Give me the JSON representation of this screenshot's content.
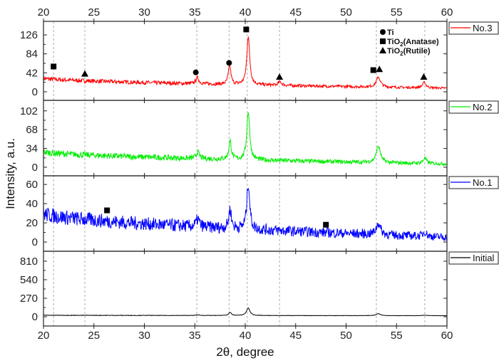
{
  "chart_data": {
    "type": "line",
    "title": "",
    "xlabel": "2θ, degree",
    "ylabel": "Intensity, a.u.",
    "xlim": [
      20,
      60
    ],
    "xticks": [
      20,
      25,
      30,
      35,
      40,
      45,
      50,
      55,
      60
    ],
    "reference_lines": [
      21.0,
      24.1,
      35.2,
      38.4,
      40.2,
      43.4,
      53.0,
      57.8
    ],
    "marker_legend": [
      {
        "symbol": "circle",
        "label": "Ti"
      },
      {
        "symbol": "square",
        "label": "TiO2(Anatase)"
      },
      {
        "symbol": "triangle",
        "label": "TiO2(Rutile)"
      }
    ],
    "panels": [
      {
        "name": "No.3",
        "color": "#ff0000",
        "ylim": [
          -19,
          156
        ],
        "yticks": [
          0,
          42,
          84,
          126
        ],
        "baseline": [
          30,
          8
        ],
        "noise": 5,
        "peaks": [
          [
            35.25,
            14,
            0.18
          ],
          [
            38.45,
            42,
            0.15
          ],
          [
            40.3,
            108,
            0.17
          ],
          [
            43.45,
            8,
            0.2
          ],
          [
            53.2,
            22,
            0.25
          ],
          [
            57.75,
            12,
            0.2
          ]
        ],
        "markers": [
          {
            "symbol": "square",
            "x": 21.0,
            "y": 56
          },
          {
            "symbol": "triangle",
            "x": 24.1,
            "y": 40
          },
          {
            "symbol": "circle",
            "x": 35.1,
            "y": 43
          },
          {
            "symbol": "circle",
            "x": 38.4,
            "y": 64
          },
          {
            "symbol": "square",
            "x": 40.1,
            "y": 138
          },
          {
            "symbol": "triangle",
            "x": 43.4,
            "y": 33
          },
          {
            "symbol": "square",
            "x": 52.7,
            "y": 48
          },
          {
            "symbol": "triangle",
            "x": 53.3,
            "y": 50
          },
          {
            "symbol": "triangle",
            "x": 57.7,
            "y": 33
          }
        ]
      },
      {
        "name": "No.2",
        "color": "#00ee00",
        "ylim": [
          -15.5,
          121
        ],
        "yticks": [
          0,
          34,
          68,
          102
        ],
        "baseline": [
          28,
          6
        ],
        "noise": 6,
        "peaks": [
          [
            35.3,
            12,
            0.18
          ],
          [
            38.5,
            33,
            0.15
          ],
          [
            40.3,
            88,
            0.17
          ],
          [
            53.2,
            30,
            0.25
          ],
          [
            57.8,
            10,
            0.2
          ]
        ],
        "markers": []
      },
      {
        "name": "No.1",
        "color": "#0000ff",
        "ylim": [
          -9.6,
          69
        ],
        "yticks": [
          0,
          20,
          40,
          60
        ],
        "baseline": [
          30,
          5
        ],
        "noise": 8,
        "peaks": [
          [
            35.3,
            8,
            0.18
          ],
          [
            38.5,
            20,
            0.15
          ],
          [
            40.3,
            48,
            0.17
          ],
          [
            53.2,
            12,
            0.25
          ],
          [
            57.8,
            5,
            0.2
          ]
        ],
        "markers": [
          {
            "symbol": "square",
            "x": 26.3,
            "y": 33
          },
          {
            "symbol": "square",
            "x": 48.0,
            "y": 18
          }
        ]
      },
      {
        "name": "Initial",
        "color": "#000000",
        "ylim": [
          -135,
          955
        ],
        "yticks": [
          0,
          270,
          540,
          810
        ],
        "baseline": [
          22,
          15
        ],
        "noise": 4,
        "peaks": [
          [
            35.3,
            10,
            0.18
          ],
          [
            38.5,
            45,
            0.15
          ],
          [
            40.3,
            110,
            0.2
          ],
          [
            53.2,
            28,
            0.25
          ],
          [
            57.8,
            8,
            0.2
          ]
        ],
        "markers": []
      }
    ]
  }
}
